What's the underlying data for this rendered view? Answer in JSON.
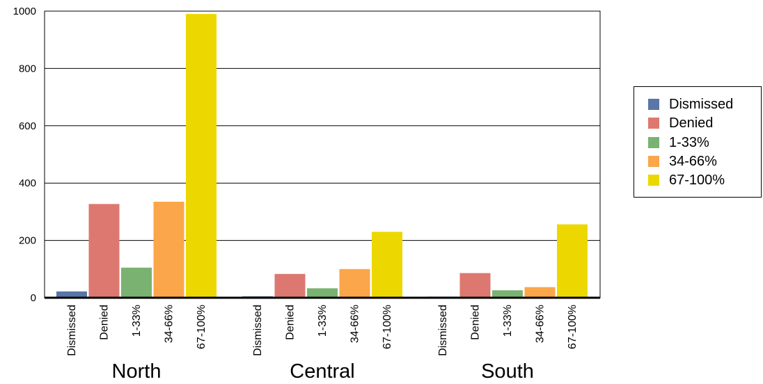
{
  "chart_data": {
    "type": "bar",
    "groups": [
      "North",
      "Central",
      "South"
    ],
    "categories": [
      "Dismissed",
      "Denied",
      "1-33%",
      "34-66%",
      "67-100%"
    ],
    "colors": [
      "#5a76a8",
      "#dd7870",
      "#7ab271",
      "#fba64a",
      "#ecd800"
    ],
    "values": [
      [
        22,
        327,
        105,
        335,
        990
      ],
      [
        5,
        83,
        33,
        100,
        230
      ],
      [
        4,
        86,
        26,
        37,
        256
      ]
    ],
    "ylim": [
      0,
      1000
    ],
    "yticks": [
      0,
      200,
      400,
      600,
      800,
      1000
    ],
    "grid": true,
    "legend": "right"
  }
}
